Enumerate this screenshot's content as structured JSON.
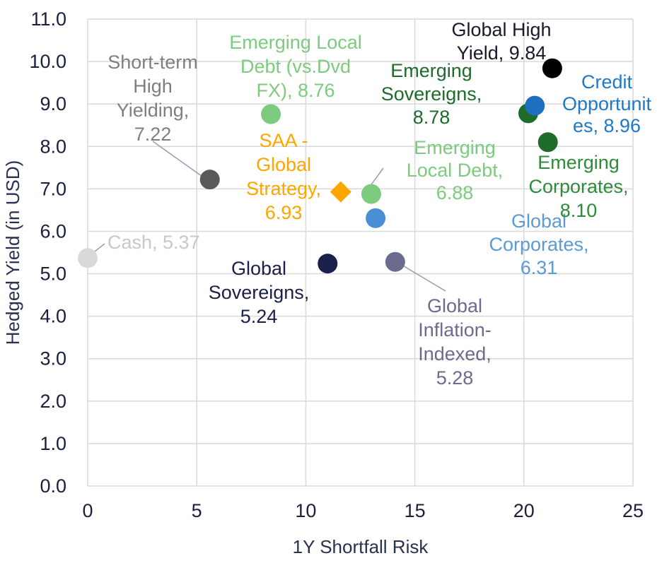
{
  "chart_data": {
    "type": "scatter",
    "xlabel": "1Y Shortfall Risk",
    "ylabel": "Hedged Yield (in USD)",
    "xlim": [
      0,
      25
    ],
    "ylim": [
      0,
      11
    ],
    "x_ticks": [
      "0",
      "5",
      "10",
      "15",
      "20",
      "25"
    ],
    "y_ticks": [
      "0.0",
      "1.0",
      "2.0",
      "3.0",
      "4.0",
      "5.0",
      "6.0",
      "7.0",
      "8.0",
      "9.0",
      "10.0",
      "11.0"
    ],
    "grid": true,
    "points": [
      {
        "name": "Cash",
        "x": 0.0,
        "y": 5.37,
        "color": "#d9d9d9",
        "marker": "circle",
        "label_lines": [
          "Cash, 5.37"
        ],
        "label_color": "#c8c8c8"
      },
      {
        "name": "Short-term High Yielding",
        "x": 5.6,
        "y": 7.22,
        "color": "#595959",
        "marker": "circle",
        "label_lines": [
          "Short-term",
          "High",
          "Yielding,",
          "7.22"
        ],
        "label_color": "#7f7f7f"
      },
      {
        "name": "Emerging Local Debt (vs.Dvd FX)",
        "x": 8.4,
        "y": 8.76,
        "color": "#7ccb7e",
        "marker": "circle",
        "label_lines": [
          "Emerging Local",
          "Debt (vs.Dvd",
          "FX), 8.76"
        ],
        "label_color": "#7ccb7e"
      },
      {
        "name": "SAA - Global Strategy",
        "x": 11.6,
        "y": 6.93,
        "color": "#ffa500",
        "marker": "diamond",
        "label_lines": [
          "SAA -",
          "Global",
          "Strategy,",
          "6.93"
        ],
        "label_color": "#ffa500"
      },
      {
        "name": "Global Sovereigns",
        "x": 11.0,
        "y": 5.24,
        "color": "#1b1f4b",
        "marker": "circle",
        "label_lines": [
          "Global",
          "Sovereigns,",
          "5.24"
        ],
        "label_color": "#1b1f4b"
      },
      {
        "name": "Emerging Local Debt",
        "x": 13.0,
        "y": 6.88,
        "color": "#7ccb7e",
        "marker": "circle",
        "label_lines": [
          "Emerging",
          "Local Debt,",
          "6.88"
        ],
        "label_color": "#7ccb7e"
      },
      {
        "name": "Global Corporates",
        "x": 13.2,
        "y": 6.31,
        "color": "#4a8fd6",
        "marker": "circle",
        "label_lines": [
          "Global",
          "Corporates,",
          "6.31"
        ],
        "label_color": "#5b9bd5"
      },
      {
        "name": "Global Inflation-Indexed",
        "x": 14.1,
        "y": 5.28,
        "color": "#6b6b8e",
        "marker": "circle",
        "label_lines": [
          "Global",
          "Inflation-",
          "Indexed,",
          "5.28"
        ],
        "label_color": "#6b6b8e"
      },
      {
        "name": "Emerging Sovereigns",
        "x": 20.2,
        "y": 8.78,
        "color": "#1e6b2a",
        "marker": "circle",
        "label_lines": [
          "Emerging",
          "Sovereigns,",
          "8.78"
        ],
        "label_color": "#1e6b2a"
      },
      {
        "name": "Credit Opportunities",
        "x": 20.5,
        "y": 8.96,
        "color": "#1f6fc1",
        "marker": "circle",
        "label_lines": [
          "Credit",
          "Opportunit",
          "es, 8.96"
        ],
        "label_color": "#1f78c8"
      },
      {
        "name": "Emerging Corporates",
        "x": 21.1,
        "y": 8.1,
        "color": "#1e6b2a",
        "marker": "circle",
        "label_lines": [
          "Emerging",
          "Corporates,",
          "8.10"
        ],
        "label_color": "#2e8b3a"
      },
      {
        "name": "Global High Yield",
        "x": 21.3,
        "y": 9.84,
        "color": "#000000",
        "marker": "circle",
        "label_lines": [
          "Global High",
          "Yield, 9.84"
        ],
        "label_color": "#1a1a2e"
      }
    ]
  }
}
